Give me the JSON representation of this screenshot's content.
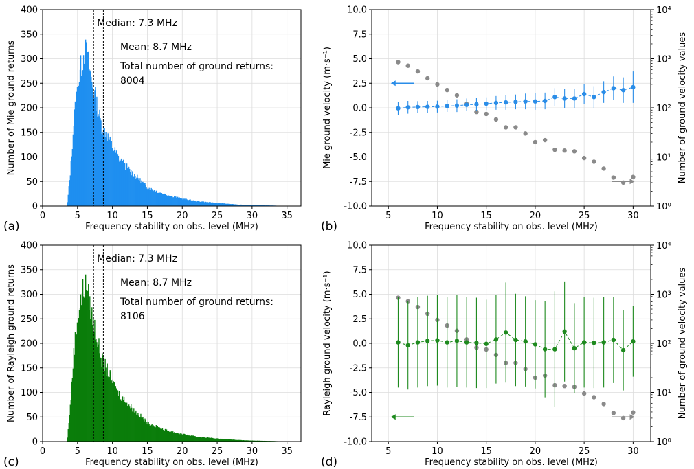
{
  "chart_data": [
    {
      "type": "histogram",
      "panel_label": "(a)",
      "xlabel": "Frequency stability on obs. level (MHz)",
      "ylabel": "Number of Mie ground returns",
      "xlim": [
        0,
        37
      ],
      "ylim": [
        0,
        400
      ],
      "xticks": [
        0,
        5,
        10,
        15,
        20,
        25,
        30,
        35
      ],
      "yticks": [
        0,
        50,
        100,
        150,
        200,
        250,
        300,
        350,
        400
      ],
      "grid": true,
      "color": "#1f8ff0",
      "median_line": {
        "x": 7.3,
        "label": "Median: 7.3 MHz"
      },
      "mean_line": {
        "x": 8.7,
        "label": "Mean: 8.7 MHz"
      },
      "total_label": "Total number of ground returns:",
      "total_value": "8004",
      "bin_width": 0.1,
      "profile_x": [
        3.5,
        4.0,
        4.5,
        5.0,
        5.5,
        6.0,
        6.3,
        6.7,
        7.0,
        7.5,
        8.0,
        8.5,
        9.0,
        9.5,
        10.0,
        11.0,
        12.0,
        13.0,
        14.0,
        15.0,
        16.0,
        17.0,
        18.0,
        20.0,
        22.0,
        25.0,
        28.0,
        30.0,
        33.0,
        35.0
      ],
      "profile_y": [
        0,
        75,
        180,
        240,
        285,
        318,
        308,
        280,
        255,
        225,
        190,
        160,
        152,
        135,
        120,
        95,
        80,
        65,
        52,
        38,
        32,
        26,
        22,
        15,
        10,
        6,
        3,
        2,
        1,
        0
      ]
    },
    {
      "type": "scatter",
      "panel_label": "(b)",
      "xlabel": "Frequency stability on obs. level (MHz)",
      "ylabel": "Mie ground velocity (m·s⁻¹)",
      "ylabel_right": "Number of ground velocity values",
      "xlim": [
        3.3,
        31.8
      ],
      "ylim": [
        -10,
        10
      ],
      "xticks": [
        5,
        10,
        15,
        20,
        25,
        30
      ],
      "yticks": [
        -10.0,
        -7.5,
        -5.0,
        -2.5,
        0.0,
        2.5,
        5.0,
        7.5,
        10.0
      ],
      "y2_scale": "log",
      "y2_ticks": [
        "10⁰",
        "10¹",
        "10²",
        "10³",
        "10⁴"
      ],
      "grid": true,
      "x": [
        6,
        7,
        8,
        9,
        10,
        11,
        12,
        13,
        14,
        15,
        16,
        17,
        18,
        19,
        20,
        21,
        22,
        23,
        24,
        25,
        26,
        27,
        28,
        29,
        30
      ],
      "series": [
        {
          "axis": "left",
          "color": "#2a8de8",
          "values": [
            -0.05,
            0.05,
            0.08,
            0.1,
            0.12,
            0.18,
            0.22,
            0.3,
            0.35,
            0.42,
            0.5,
            0.55,
            0.6,
            0.65,
            0.65,
            0.7,
            1.1,
            0.95,
            0.95,
            1.4,
            1.1,
            1.6,
            2.0,
            1.8,
            2.1
          ],
          "error": [
            0.65,
            0.65,
            0.6,
            0.6,
            0.6,
            0.6,
            0.65,
            0.65,
            0.65,
            0.65,
            0.7,
            0.75,
            0.75,
            0.8,
            0.85,
            0.85,
            0.9,
            1.0,
            1.0,
            1.0,
            1.1,
            1.1,
            1.2,
            1.3,
            1.6
          ]
        },
        {
          "axis": "right",
          "color": "#8a8a8a",
          "values": [
            850,
            720,
            550,
            400,
            300,
            230,
            180,
            120,
            82,
            75,
            58,
            40,
            40,
            30,
            20,
            22,
            14,
            13.5,
            13,
            9.5,
            8,
            5.8,
            3.8,
            3,
            3.9
          ]
        }
      ],
      "arrows": [
        {
          "direction": "left",
          "color": "#2a8de8",
          "axis": "left"
        },
        {
          "direction": "right",
          "color": "#8a8a8a",
          "axis": "right"
        }
      ]
    },
    {
      "type": "histogram",
      "panel_label": "(c)",
      "xlabel": "Frequency stability on obs. level (MHz)",
      "ylabel": "Number of Rayleigh ground returns",
      "xlim": [
        0,
        37
      ],
      "ylim": [
        0,
        400
      ],
      "xticks": [
        0,
        5,
        10,
        15,
        20,
        25,
        30,
        35
      ],
      "yticks": [
        0,
        50,
        100,
        150,
        200,
        250,
        300,
        350,
        400
      ],
      "grid": true,
      "color": "#0a7d0a",
      "median_line": {
        "x": 7.3,
        "label": "Median: 7.3 MHz"
      },
      "mean_line": {
        "x": 8.7,
        "label": "Mean: 8.7 MHz"
      },
      "total_label": "Total number of ground returns:",
      "total_value": "8106",
      "bin_width": 0.1,
      "profile_x": [
        3.5,
        4.0,
        4.5,
        5.0,
        5.5,
        6.0,
        6.3,
        6.7,
        7.0,
        7.5,
        8.0,
        8.5,
        9.0,
        9.5,
        10.0,
        11.0,
        12.0,
        13.0,
        14.0,
        15.0,
        16.0,
        17.0,
        18.0,
        20.0,
        22.0,
        25.0,
        28.0,
        30.0,
        33.0,
        35.0
      ],
      "profile_y": [
        0,
        80,
        190,
        250,
        290,
        320,
        310,
        285,
        260,
        230,
        195,
        165,
        152,
        138,
        120,
        95,
        80,
        65,
        52,
        38,
        32,
        26,
        22,
        15,
        10,
        6,
        3,
        2,
        1,
        0
      ]
    },
    {
      "type": "scatter",
      "panel_label": "(d)",
      "xlabel": "Frequency stability on obs. level (MHz)",
      "ylabel": "Rayleigh ground velocity (m·s⁻¹)",
      "ylabel_right": "Number of ground velocity values",
      "xlim": [
        3.3,
        31.8
      ],
      "ylim": [
        -10,
        10
      ],
      "xticks": [
        5,
        10,
        15,
        20,
        25,
        30
      ],
      "yticks": [
        -10.0,
        -7.5,
        -5.0,
        -2.5,
        0.0,
        2.5,
        5.0,
        7.5,
        10.0
      ],
      "y2_scale": "log",
      "y2_ticks": [
        "10⁰",
        "10¹",
        "10²",
        "10³",
        "10⁴"
      ],
      "grid": true,
      "x": [
        6,
        7,
        8,
        9,
        10,
        11,
        12,
        13,
        14,
        15,
        16,
        17,
        18,
        19,
        20,
        21,
        22,
        23,
        24,
        25,
        26,
        27,
        28,
        29,
        30
      ],
      "series": [
        {
          "axis": "left",
          "color": "#1e8a1e",
          "values": [
            0.1,
            -0.2,
            0.1,
            0.25,
            0.3,
            0.1,
            0.25,
            0.1,
            0.05,
            -0.05,
            0.4,
            1.1,
            0.35,
            0.2,
            -0.1,
            -0.6,
            -0.6,
            1.2,
            -0.5,
            0.1,
            0.05,
            0.1,
            0.35,
            -0.7,
            0.2
          ],
          "error": [
            4.6,
            4.5,
            4.6,
            4.6,
            4.6,
            4.6,
            4.7,
            4.6,
            4.6,
            4.5,
            4.5,
            5.1,
            4.7,
            4.6,
            4.5,
            4.9,
            5.9,
            5.1,
            4.6,
            4.6,
            4.6,
            4.6,
            4.4,
            4.1,
            3.6
          ]
        },
        {
          "axis": "right",
          "color": "#8a8a8a",
          "values": [
            850,
            720,
            550,
            400,
            300,
            230,
            180,
            120,
            82,
            75,
            58,
            40,
            40,
            30,
            20,
            22,
            14,
            13.5,
            13,
            9.5,
            8,
            5.8,
            3.8,
            3,
            3.9
          ]
        }
      ],
      "arrows": [
        {
          "direction": "left",
          "color": "#1e8a1e",
          "axis": "left"
        },
        {
          "direction": "right",
          "color": "#8a8a8a",
          "axis": "right"
        }
      ]
    }
  ]
}
